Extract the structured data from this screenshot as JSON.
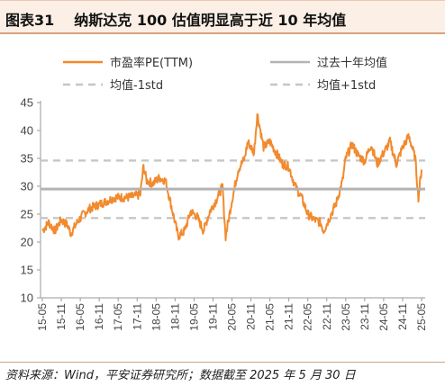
{
  "title": {
    "label": "图表31",
    "text": "纳斯达克 100 估值明显高于近 10 年均值"
  },
  "source": "资料来源：Wind，平安证券研究所；数据截至 2025 年 5 月 30 日",
  "colors": {
    "pe": "#f28a2e",
    "mean": "#b3b3b3",
    "band": "#c6c6c6",
    "axis": "#9a9a9a"
  },
  "chart_data": {
    "type": "line",
    "title": "纳斯达克 100 估值明显高于近 10 年均值",
    "ylim": [
      10,
      45
    ],
    "yticks": [
      10,
      15,
      20,
      25,
      30,
      35,
      40,
      45
    ],
    "xlim": [
      "2015-05",
      "2025-05"
    ],
    "xticks": [
      "15-05",
      "15-11",
      "16-05",
      "16-11",
      "17-05",
      "17-11",
      "18-05",
      "18-11",
      "19-05",
      "19-11",
      "20-05",
      "20-11",
      "21-05",
      "21-11",
      "22-05",
      "22-11",
      "23-05",
      "23-11",
      "24-05",
      "24-11",
      "25-05"
    ],
    "legend": [
      "市盈率PE(TTM)",
      "过去十年均值",
      "均值-1std",
      "均值+1std"
    ],
    "legend_position": "top",
    "series": [
      {
        "name": "市盈率PE(TTM)",
        "style": "solid",
        "x": [
          "2015-05",
          "2015-07",
          "2015-09",
          "2015-11",
          "2016-01",
          "2016-02",
          "2016-04",
          "2016-06",
          "2016-08",
          "2016-10",
          "2016-12",
          "2017-02",
          "2017-04",
          "2017-06",
          "2017-08",
          "2017-10",
          "2017-12",
          "2018-01",
          "2018-02",
          "2018-04",
          "2018-06",
          "2018-08",
          "2018-10",
          "2018-12",
          "2019-02",
          "2019-04",
          "2019-06",
          "2019-08",
          "2019-10",
          "2019-12",
          "2020-02",
          "2020-03",
          "2020-05",
          "2020-07",
          "2020-09",
          "2020-10",
          "2020-12",
          "2021-01",
          "2021-03",
          "2021-05",
          "2021-07",
          "2021-09",
          "2021-11",
          "2022-01",
          "2022-03",
          "2022-05",
          "2022-07",
          "2022-09",
          "2022-10",
          "2022-12",
          "2023-02",
          "2023-04",
          "2023-05",
          "2023-07",
          "2023-09",
          "2023-11",
          "2024-01",
          "2024-03",
          "2024-05",
          "2024-07",
          "2024-09",
          "2024-11",
          "2025-01",
          "2025-03",
          "2025-04",
          "2025-05"
        ],
        "values": [
          22.0,
          23.5,
          22.0,
          24.0,
          23.0,
          21.5,
          23.5,
          25.0,
          26.0,
          26.5,
          27.0,
          27.5,
          28.0,
          28.0,
          28.0,
          28.2,
          28.5,
          33.5,
          31.0,
          30.5,
          31.5,
          31.0,
          26.0,
          21.0,
          22.0,
          25.5,
          24.5,
          22.0,
          25.5,
          27.5,
          30.0,
          21.0,
          27.5,
          33.0,
          35.0,
          38.0,
          36.0,
          43.0,
          37.0,
          38.0,
          36.0,
          34.0,
          33.5,
          30.0,
          28.0,
          25.0,
          24.0,
          23.5,
          22.0,
          24.5,
          27.0,
          31.0,
          35.0,
          37.5,
          35.5,
          34.5,
          37.5,
          34.0,
          36.0,
          38.0,
          34.0,
          37.0,
          39.0,
          35.0,
          28.0,
          33.0
        ]
      },
      {
        "name": "过去十年均值",
        "style": "solid",
        "values": [
          29.5
        ]
      },
      {
        "name": "均值-1std",
        "style": "dashed",
        "values": [
          24.3
        ]
      },
      {
        "name": "均值+1std",
        "style": "dashed",
        "values": [
          34.6
        ]
      }
    ]
  }
}
